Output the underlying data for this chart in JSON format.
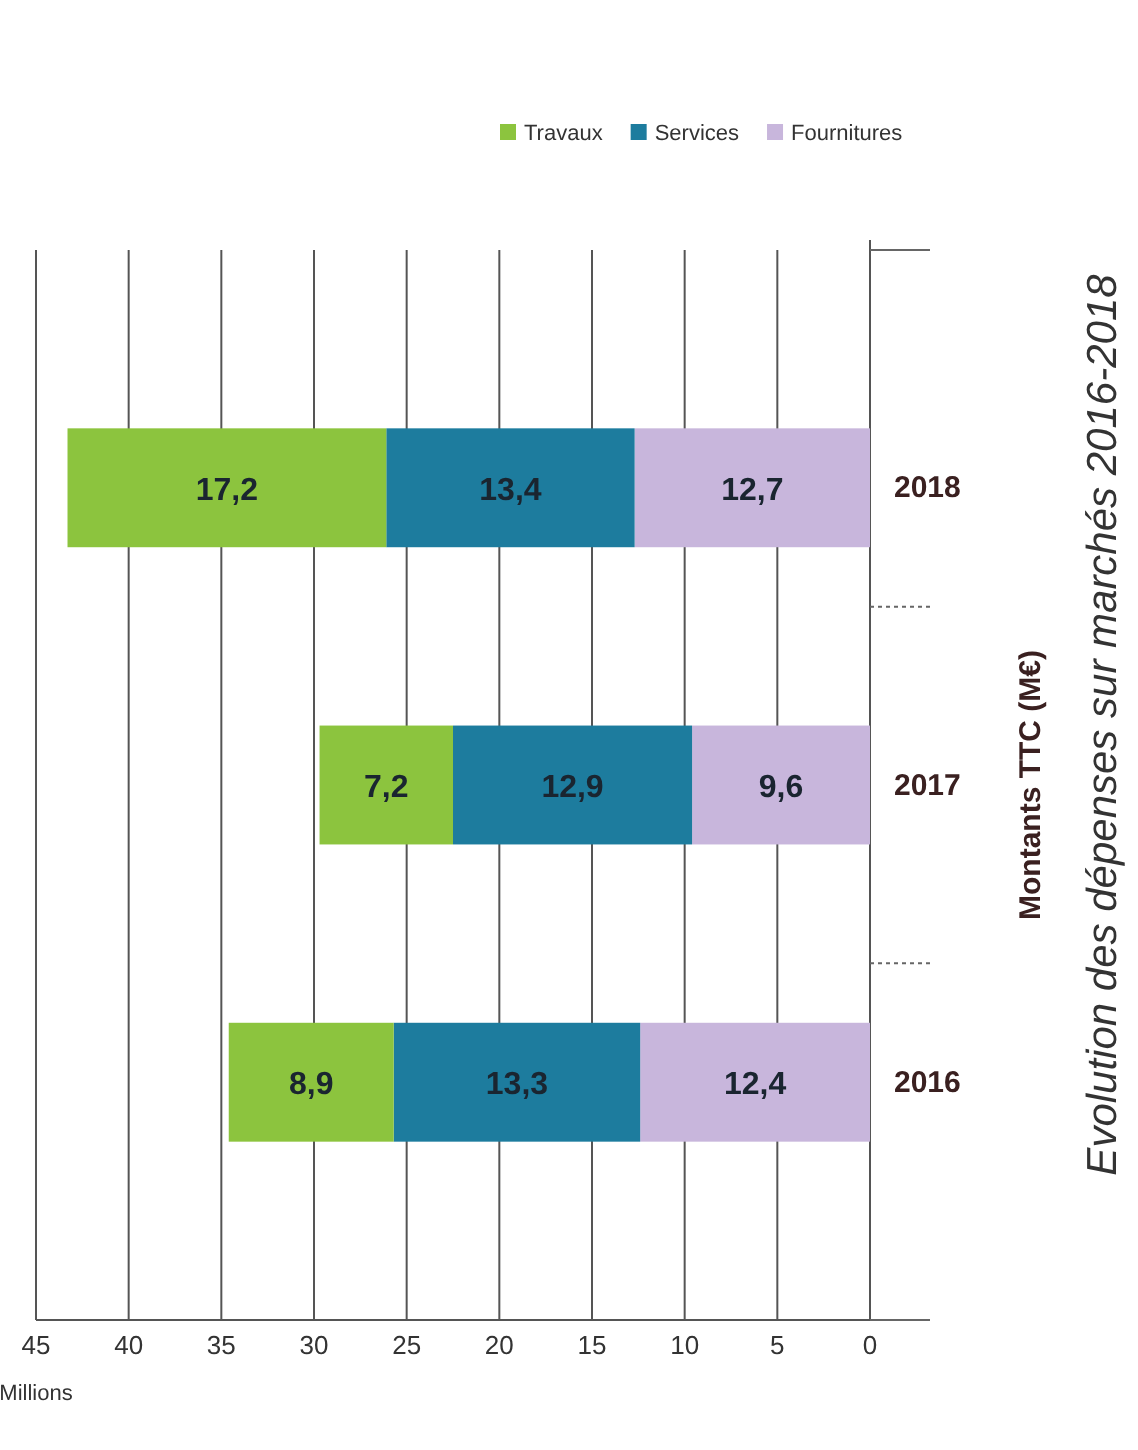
{
  "chart_data": {
    "type": "bar",
    "orientation": "horizontal",
    "title": "Evolution des dépenses sur marchés 2016-2018",
    "xlabel": "Millions",
    "ylabel": "Montants TTC (M€)",
    "categories": [
      "2018",
      "2017",
      "2016"
    ],
    "stacked": true,
    "series": [
      {
        "name": "Fournitures",
        "color": "#c8b6dc",
        "values": [
          12.7,
          9.6,
          12.4
        ],
        "value_labels": [
          "12,7",
          "9,6",
          "12,4"
        ]
      },
      {
        "name": "Services",
        "color": "#1d7c9e",
        "values": [
          13.4,
          12.9,
          13.3
        ],
        "value_labels": [
          "13,4",
          "12,9",
          "13,3"
        ]
      },
      {
        "name": "Travaux",
        "color": "#8cc43e",
        "values": [
          17.2,
          7.2,
          8.9
        ],
        "value_labels": [
          "17,2",
          "7,2",
          "8,9"
        ]
      }
    ],
    "xlim": [
      45,
      0
    ],
    "xticks": [
      45,
      40,
      35,
      30,
      25,
      20,
      15,
      10,
      5,
      0
    ],
    "grid": "x",
    "legend": "top right"
  }
}
